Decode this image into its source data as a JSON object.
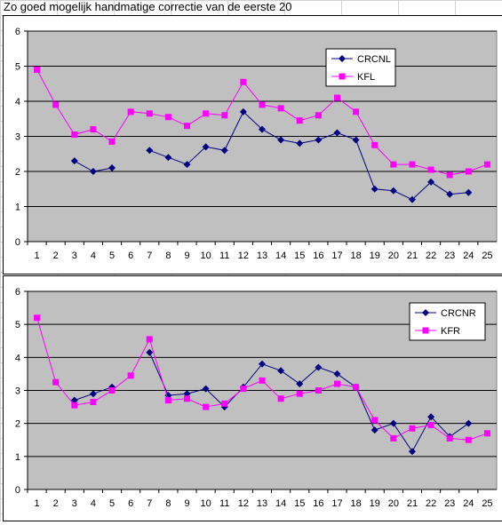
{
  "sheet": {
    "title": "Zo goed mogelijk handmatige correctie van de eerste 20"
  },
  "chart_data": [
    {
      "type": "line",
      "x": [
        1,
        2,
        3,
        4,
        5,
        6,
        7,
        8,
        9,
        10,
        11,
        12,
        13,
        14,
        15,
        16,
        17,
        18,
        19,
        20,
        21,
        22,
        23,
        24,
        25
      ],
      "ylim": [
        0,
        6
      ],
      "yticks": [
        0,
        1,
        2,
        3,
        4,
        5,
        6
      ],
      "grid": true,
      "plot_bg": "#c0c0c0",
      "legend_position": "top-right",
      "series": [
        {
          "name": "CRCNL",
          "color": "#000080",
          "marker": "diamond",
          "values": [
            null,
            null,
            2.3,
            2.0,
            2.1,
            null,
            2.6,
            2.4,
            2.2,
            2.7,
            2.6,
            3.7,
            3.2,
            2.9,
            2.8,
            2.9,
            3.1,
            2.9,
            1.5,
            1.45,
            1.2,
            1.7,
            1.35,
            1.4,
            null
          ]
        },
        {
          "name": "KFL",
          "color": "#ff00ff",
          "marker": "square",
          "values": [
            4.9,
            3.9,
            3.05,
            3.2,
            2.85,
            3.7,
            3.65,
            3.55,
            3.3,
            3.65,
            3.6,
            4.55,
            3.9,
            3.8,
            3.45,
            3.6,
            4.1,
            3.7,
            2.75,
            2.2,
            2.2,
            2.05,
            1.9,
            2.0,
            2.2
          ]
        }
      ]
    },
    {
      "type": "line",
      "x": [
        1,
        2,
        3,
        4,
        5,
        6,
        7,
        8,
        9,
        10,
        11,
        12,
        13,
        14,
        15,
        16,
        17,
        18,
        19,
        20,
        21,
        22,
        23,
        24,
        25
      ],
      "ylim": [
        0,
        6
      ],
      "yticks": [
        0,
        1,
        2,
        3,
        4,
        5,
        6
      ],
      "grid": true,
      "plot_bg": "#c0c0c0",
      "legend_position": "top-right",
      "series": [
        {
          "name": "CRCNR",
          "color": "#000080",
          "marker": "diamond",
          "values": [
            null,
            null,
            2.7,
            2.9,
            3.1,
            null,
            4.15,
            2.85,
            2.9,
            3.05,
            2.5,
            3.1,
            3.8,
            3.6,
            3.2,
            3.7,
            3.5,
            3.1,
            1.8,
            2.0,
            1.15,
            2.2,
            1.6,
            2.0,
            null
          ]
        },
        {
          "name": "KFR",
          "color": "#ff00ff",
          "marker": "square",
          "values": [
            5.2,
            3.25,
            2.55,
            2.65,
            3.0,
            3.45,
            4.55,
            2.7,
            2.75,
            2.5,
            2.6,
            3.05,
            3.3,
            2.75,
            2.9,
            3.0,
            3.2,
            3.1,
            2.1,
            1.55,
            1.85,
            1.95,
            1.55,
            1.5,
            1.7
          ]
        }
      ]
    }
  ]
}
